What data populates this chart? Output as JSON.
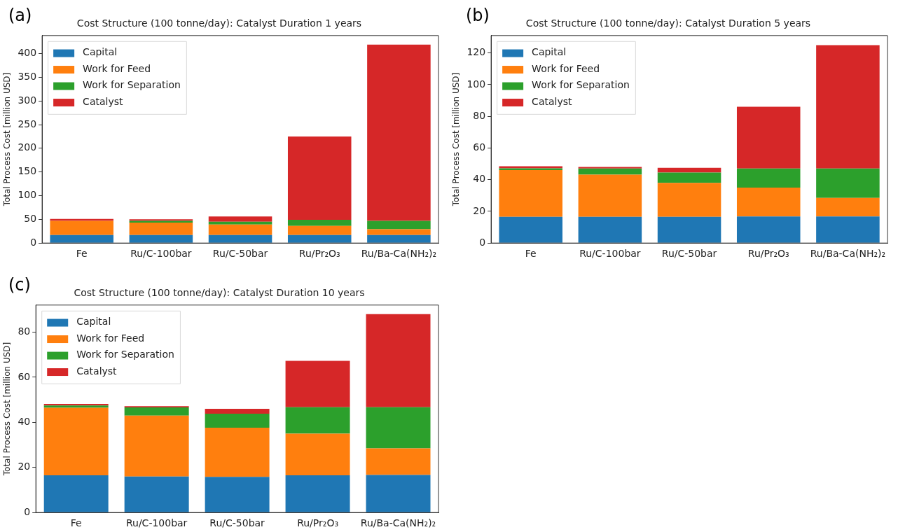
{
  "chart_data": [
    {
      "type": "bar",
      "stacked": true,
      "title": "Cost Structure (100 tonne/day): Catalyst Duration 1 years",
      "ylabel": "Total Process Cost [million USD]",
      "annotations": [
        "(a)"
      ],
      "categories": [
        "Fe",
        "Ru/C-100bar",
        "Ru/C-50bar",
        "Ru/Pr₂O₃",
        "Ru/Ba-Ca(NH₂)₂"
      ],
      "series": [
        {
          "name": "Capital",
          "color": "#1f77b4",
          "values": [
            17,
            17,
            17,
            17,
            17
          ]
        },
        {
          "name": "Work for Feed",
          "color": "#ff7f0e",
          "values": [
            30,
            26,
            22,
            19,
            12
          ]
        },
        {
          "name": "Work for Separation",
          "color": "#2ca02c",
          "values": [
            null,
            4,
            6,
            13,
            18
          ]
        },
        {
          "name": "Catalyst",
          "color": "#d62728",
          "values": [
            4,
            3,
            11,
            176,
            372
          ]
        }
      ],
      "ylim": [
        0,
        438
      ],
      "yticks": [
        0,
        50,
        100,
        150,
        200,
        250,
        300,
        350,
        400
      ],
      "grid": false,
      "legend": "top left"
    },
    {
      "type": "bar",
      "stacked": true,
      "title": "Cost Structure (100 tonne/day): Catalyst Duration 5 years",
      "ylabel": "Total Process Cost [million USD]",
      "annotations": [
        "(b)"
      ],
      "categories": [
        "Fe",
        "Ru/C-100bar",
        "Ru/C-50bar",
        "Ru/Pr₂O₃",
        "Ru/Ba-Ca(NH₂)₂"
      ],
      "series": [
        {
          "name": "Capital",
          "color": "#1f77b4",
          "values": [
            16.5,
            16.5,
            16.5,
            16.8,
            16.8
          ]
        },
        {
          "name": "Work for Feed",
          "color": "#ff7f0e",
          "values": [
            29.5,
            26.7,
            21.5,
            18.2,
            11.7
          ]
        },
        {
          "name": "Work for Separation",
          "color": "#2ca02c",
          "values": [
            1.2,
            3.8,
            6.5,
            12,
            18.5
          ]
        },
        {
          "name": "Catalyst",
          "color": "#d62728",
          "values": [
            1.3,
            1,
            3,
            39,
            78
          ]
        }
      ],
      "ylim": [
        0,
        131
      ],
      "yticks": [
        0,
        20,
        40,
        60,
        80,
        100,
        120
      ],
      "grid": false,
      "legend": "top left"
    },
    {
      "type": "bar",
      "stacked": true,
      "title": "Cost Structure (100 tonne/day): Catalyst Duration 10 years",
      "ylabel": "Total Process Cost [million USD]",
      "annotations": [
        "(c)"
      ],
      "categories": [
        "Fe",
        "Ru/C-100bar",
        "Ru/C-50bar",
        "Ru/Pr₂O₃",
        "Ru/Ba-Ca(NH₂)₂"
      ],
      "series": [
        {
          "name": "Capital",
          "color": "#1f77b4",
          "values": [
            16.5,
            16,
            15.8,
            16.5,
            16.7
          ]
        },
        {
          "name": "Work for Feed",
          "color": "#ff7f0e",
          "values": [
            30,
            27,
            21.8,
            18.5,
            11.8
          ]
        },
        {
          "name": "Work for Separation",
          "color": "#2ca02c",
          "values": [
            1,
            3.6,
            6.2,
            11.7,
            18.2
          ]
        },
        {
          "name": "Catalyst",
          "color": "#d62728",
          "values": [
            0.7,
            0.6,
            2.2,
            20.6,
            41.3
          ]
        }
      ],
      "ylim": [
        0,
        92
      ],
      "yticks": [
        0,
        20,
        40,
        60,
        80
      ],
      "grid": false,
      "legend": "top left"
    }
  ]
}
